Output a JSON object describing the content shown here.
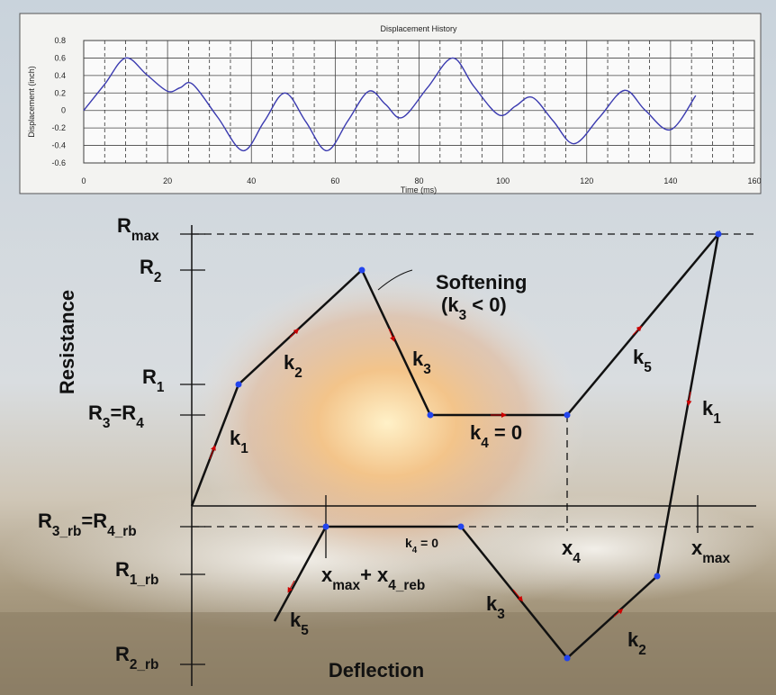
{
  "chart_data": {
    "type": "line",
    "title": "Displacement History",
    "x_label": "Time (ms)",
    "y_label": "Displacement (inch)",
    "x": [
      0,
      5,
      10,
      15,
      20,
      23,
      26,
      32,
      38,
      43,
      48,
      53,
      58,
      63,
      68,
      72,
      76,
      82,
      88,
      93,
      99,
      103,
      107,
      112,
      117,
      123,
      129,
      134,
      140,
      146
    ],
    "values": [
      0,
      0.3,
      0.6,
      0.41,
      0.22,
      0.26,
      0.3,
      -0.08,
      -0.46,
      -0.13,
      0.2,
      -0.13,
      -0.46,
      -0.12,
      0.22,
      0.07,
      -0.08,
      0.26,
      0.6,
      0.28,
      -0.05,
      0.05,
      0.15,
      -0.12,
      -0.38,
      -0.08,
      0.23,
      0,
      -0.22,
      0.17
    ],
    "color": "#3b3bb0",
    "xlim": [
      0,
      160
    ],
    "xticks": [
      0,
      20,
      40,
      60,
      80,
      100,
      120,
      140,
      160
    ],
    "ylim": [
      -0.6,
      0.8
    ],
    "yticks": [
      -0.6,
      -0.4,
      -0.2,
      0,
      0.2,
      0.4,
      0.6,
      0.8
    ],
    "grid": true,
    "minor_grid": true
  },
  "diagram": {
    "y_axis_label": "Resistance",
    "x_axis_label": "Deflection",
    "labels": [
      [
        {
          "text": "R"
        },
        {
          "sub": "max"
        }
      ],
      [
        {
          "text": "R"
        },
        {
          "sub": "2"
        }
      ],
      [
        {
          "text": "R"
        },
        {
          "sub": "1"
        }
      ],
      [
        {
          "text": "R"
        },
        {
          "sub": "3"
        },
        {
          "text": "=R"
        },
        {
          "sub": "4"
        }
      ],
      [
        {
          "text": "R"
        },
        {
          "sub": "3_rb"
        },
        {
          "text": "=R"
        },
        {
          "sub": "4_rb"
        }
      ],
      [
        {
          "text": "R"
        },
        {
          "sub": "1_rb"
        }
      ],
      [
        {
          "text": "R"
        },
        {
          "sub": "2_rb"
        }
      ],
      [
        {
          "text": "k"
        },
        {
          "sub": "1"
        }
      ],
      [
        {
          "text": "k"
        },
        {
          "sub": "2"
        }
      ],
      [
        {
          "text": "k"
        },
        {
          "sub": "3"
        }
      ],
      [
        {
          "text": "k"
        },
        {
          "sub": "4"
        },
        {
          "text": " = 0"
        }
      ],
      [
        {
          "text": "k"
        },
        {
          "sub": "5"
        }
      ],
      [
        {
          "text": "k"
        },
        {
          "sub": "1"
        }
      ],
      [
        {
          "text": "Softening"
        }
      ],
      [
        {
          "text": "(k"
        },
        {
          "sub": "3"
        },
        {
          "text": " < 0)"
        }
      ],
      [
        {
          "text": "x"
        },
        {
          "sub": "4"
        }
      ],
      [
        {
          "text": "x"
        },
        {
          "sub": "max"
        }
      ],
      [
        {
          "text": "x"
        },
        {
          "sub": "max"
        },
        {
          "text": "+ x"
        },
        {
          "sub": "4_reb"
        }
      ],
      [
        {
          "text": "k"
        },
        {
          "sub": "4"
        },
        {
          "text": " = 0"
        }
      ],
      [
        {
          "text": "k"
        },
        {
          "sub": "3"
        }
      ],
      [
        {
          "text": "k"
        },
        {
          "sub": "5"
        }
      ],
      [
        {
          "text": "k"
        },
        {
          "sub": "2"
        }
      ]
    ]
  }
}
